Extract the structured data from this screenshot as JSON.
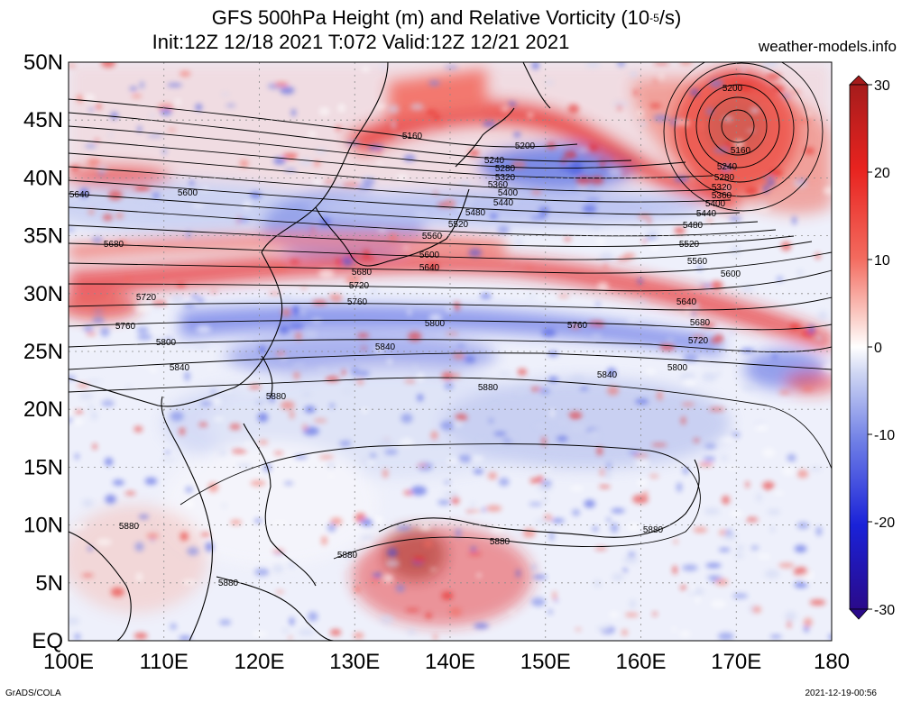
{
  "title": {
    "line1_prefix": "GFS 500hPa Height (m) and Relative Vorticity (10",
    "line1_exp": "-5",
    "line1_suffix": "/s)",
    "line2": "Init:12Z 12/18 2021 T:072 Valid:12Z 12/21 2021"
  },
  "site": "weather-models.info",
  "footer_left": "GrADS/COLA",
  "footer_right": "2021-12-19-00:56",
  "axes": {
    "lat_labels": [
      "50N",
      "45N",
      "40N",
      "35N",
      "30N",
      "25N",
      "20N",
      "15N",
      "10N",
      "5N",
      "EQ"
    ],
    "lon_labels": [
      "100E",
      "110E",
      "120E",
      "130E",
      "140E",
      "150E",
      "160E",
      "170E",
      "180"
    ]
  },
  "colorbar": {
    "ticks": [
      "30",
      "20",
      "10",
      "0",
      "-10",
      "-20",
      "-30"
    ],
    "colors": [
      "#a61c1c",
      "#e8231f",
      "#f36a5e",
      "#fbd3cd",
      "#ffffff",
      "#cfd6f3",
      "#6f7fe6",
      "#1a22d8",
      "#2a0a8a"
    ]
  },
  "contour_labels": {
    "h5160": "5160",
    "h5200": "5200",
    "h5240": "5240",
    "h5280": "5280",
    "h5320": "5320",
    "h5360": "5360",
    "h5400": "5400",
    "h5440": "5440",
    "h5480": "5480",
    "h5520": "5520",
    "h5560": "5560",
    "h5600": "5600",
    "h5640": "5640",
    "h5680": "5680",
    "h5720": "5720",
    "h5760": "5760",
    "h5800": "5800",
    "h5840": "5840",
    "h5880": "5880"
  },
  "colors": {
    "red_band": "#e8231f",
    "dark_red": "#a61c1c",
    "pink": "#f7a79e",
    "blue": "#6f7fe6",
    "light_blue": "#cfd6f3",
    "deep_blue": "#1a22d8"
  }
}
